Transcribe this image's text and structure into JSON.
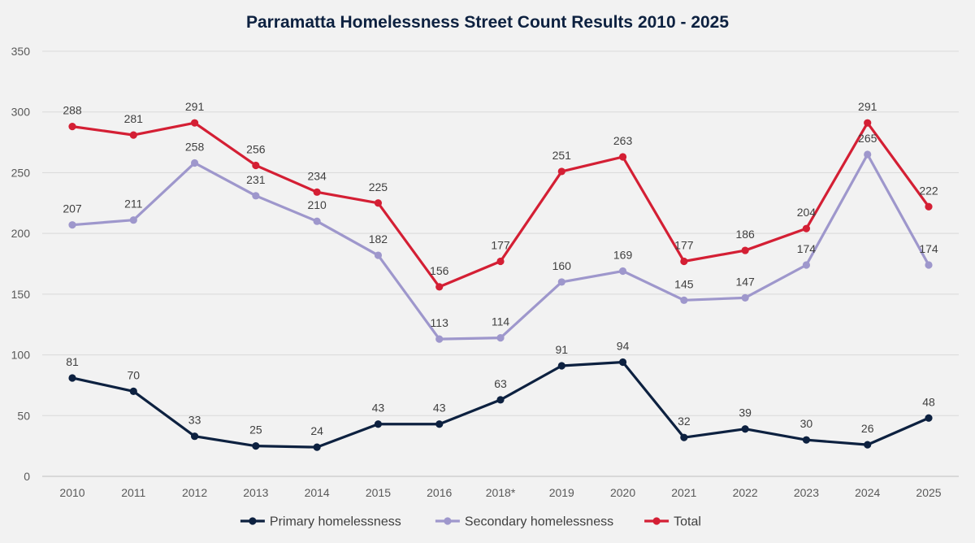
{
  "chart_data": {
    "type": "line",
    "title": "Parramatta Homelessness Street Count Results 2010 - 2025",
    "xlabel": "",
    "ylabel": "",
    "ylim": [
      0,
      350
    ],
    "yticks": [
      0,
      50,
      100,
      150,
      200,
      250,
      300,
      350
    ],
    "grid": true,
    "legend_position": "bottom",
    "categories": [
      "2010",
      "2011",
      "2012",
      "2013",
      "2014",
      "2015",
      "2016",
      "2018*",
      "2019",
      "2020",
      "2021",
      "2022",
      "2023",
      "2024",
      "2025"
    ],
    "series": [
      {
        "name": "Primary homelessness",
        "color": "#0d2140",
        "values": [
          81,
          70,
          33,
          25,
          24,
          43,
          43,
          63,
          91,
          94,
          32,
          39,
          30,
          26,
          48
        ]
      },
      {
        "name": "Secondary homelessness",
        "color": "#9e97cc",
        "values": [
          207,
          211,
          258,
          231,
          210,
          182,
          113,
          114,
          160,
          169,
          145,
          147,
          174,
          265,
          174
        ]
      },
      {
        "name": "Total",
        "color": "#d41f34",
        "values": [
          288,
          281,
          291,
          256,
          234,
          225,
          156,
          177,
          251,
          263,
          177,
          186,
          204,
          291,
          222
        ]
      }
    ]
  }
}
